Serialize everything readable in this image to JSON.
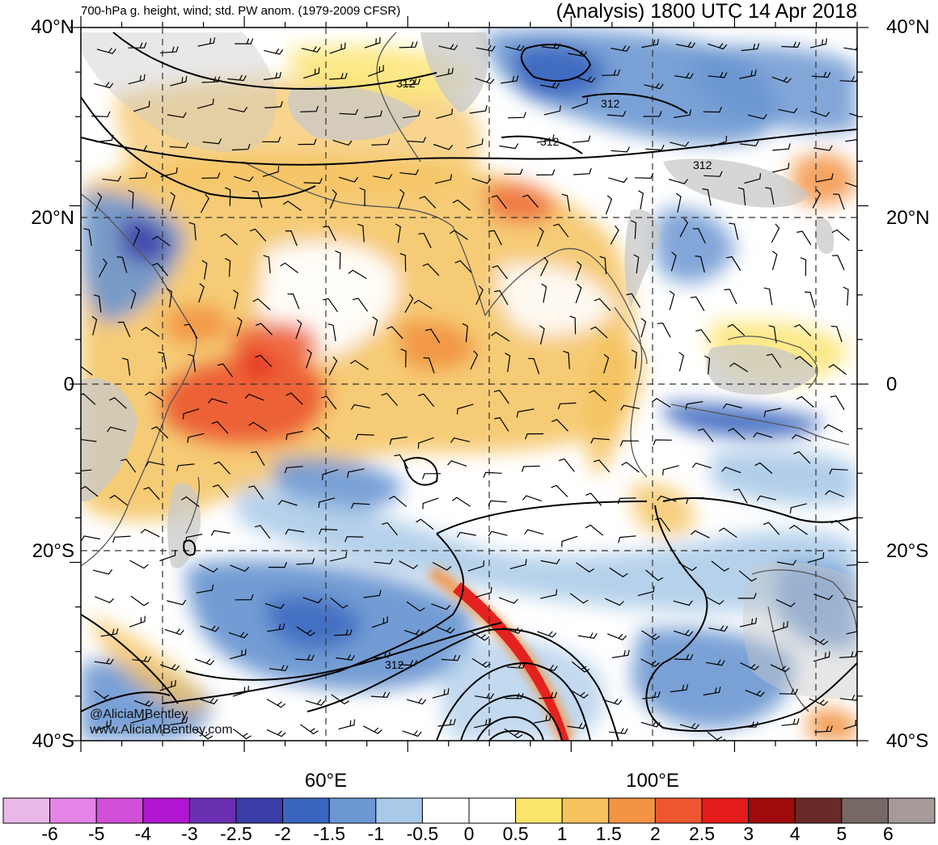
{
  "title_left": "700-hPa g. height, wind; std. PW anom. (1979-2009 CFSR)",
  "title_right": "(Analysis) 1800 UTC 14 Apr 2018",
  "lat_labels": [
    "40°N",
    "20°N",
    "0",
    "20°S",
    "40°S"
  ],
  "lat_values": [
    40,
    20,
    0,
    -20,
    -40
  ],
  "lon_labels": [
    "60°E",
    "100°E"
  ],
  "lon_values": [
    60,
    100
  ],
  "contour_labels": [
    "312",
    "312",
    "312",
    "312",
    "312"
  ],
  "credits": [
    "@AliciaMBentley",
    "www.AliciaMBentley.com"
  ],
  "colorbar": {
    "labels": [
      "-6",
      "-5",
      "-4",
      "-3",
      "-2.5",
      "-2",
      "-1.5",
      "-1",
      "-0.5",
      "0",
      "0.5",
      "1",
      "1.5",
      "2",
      "2.5",
      "3",
      "4",
      "5",
      "6"
    ],
    "colors": [
      "#e9b8e9",
      "#e384e6",
      "#d24fd9",
      "#b117d0",
      "#6a2fb0",
      "#3a3ca8",
      "#3a66bf",
      "#6c97d2",
      "#a8c9e8",
      "#ffffff",
      "#ffffff",
      "#fbe46b",
      "#f5c25e",
      "#f29444",
      "#ec5731",
      "#e31b1b",
      "#9f0b0b",
      "#6b2a2a",
      "#766864",
      "#a69a98"
    ]
  },
  "map": {
    "lon_range": [
      30,
      125
    ],
    "lat_range": [
      -40,
      40
    ],
    "land_color": "#c8c8c8",
    "lon_grid": [
      40,
      60,
      80,
      100,
      120
    ],
    "lat_grid": [
      20,
      0,
      -20
    ]
  }
}
